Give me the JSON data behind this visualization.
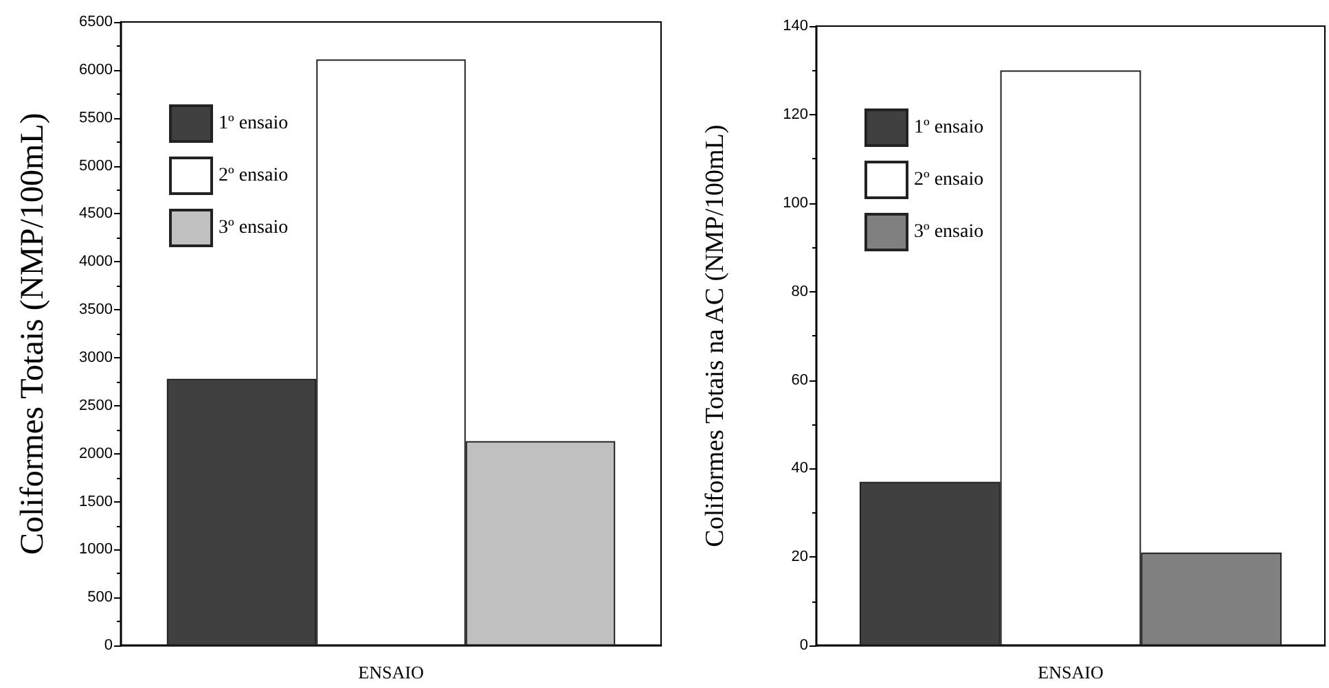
{
  "chart_data": [
    {
      "type": "bar",
      "categories": [
        null
      ],
      "xlabel": "ENSAIO",
      "ylabel": "Coliformes Totais (NMP/100mL)",
      "ylim": [
        0,
        6500
      ],
      "yticks": [
        0,
        500,
        1000,
        1500,
        2000,
        2500,
        3000,
        3500,
        4000,
        4500,
        5000,
        5500,
        6000,
        6500
      ],
      "legend": "top left",
      "grid": false,
      "series": [
        {
          "name": "1º ensaio",
          "color": "#404040",
          "values": [
            2780
          ]
        },
        {
          "name": "2º ensaio",
          "color": "#ffffff",
          "values": [
            6110
          ]
        },
        {
          "name": "3º ensaio",
          "color": "#c0c0c0",
          "values": [
            2130
          ]
        }
      ]
    },
    {
      "type": "bar",
      "categories": [
        null
      ],
      "xlabel": "ENSAIO",
      "ylabel": "Coliformes Totais na AC (NMP/100mL)",
      "ylim": [
        0,
        140
      ],
      "yticks": [
        0,
        20,
        40,
        60,
        80,
        100,
        120,
        140
      ],
      "legend": "top left",
      "grid": false,
      "series": [
        {
          "name": "1º ensaio",
          "color": "#404040",
          "values": [
            37
          ]
        },
        {
          "name": "2º ensaio",
          "color": "#ffffff",
          "values": [
            130
          ]
        },
        {
          "name": "3º ensaio",
          "color": "#808080",
          "values": [
            21
          ]
        }
      ]
    }
  ]
}
